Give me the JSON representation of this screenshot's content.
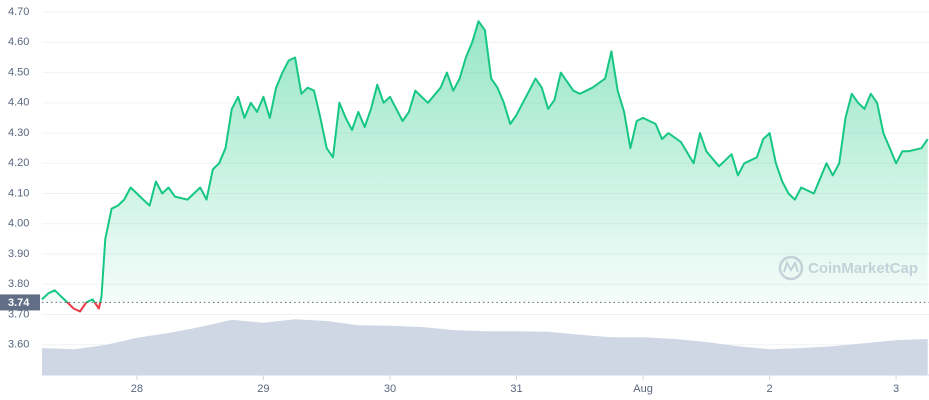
{
  "chart_data": {
    "type": "line",
    "x": [
      27.25,
      27.3,
      27.35,
      27.4,
      27.45,
      27.5,
      27.55,
      27.6,
      27.65,
      27.7,
      27.72,
      27.75,
      27.8,
      27.85,
      27.9,
      27.95,
      28,
      28.05,
      28.1,
      28.15,
      28.2,
      28.25,
      28.3,
      28.4,
      28.5,
      28.55,
      28.6,
      28.65,
      28.7,
      28.75,
      28.8,
      28.85,
      28.9,
      28.95,
      29,
      29.05,
      29.1,
      29.15,
      29.2,
      29.25,
      29.3,
      29.35,
      29.4,
      29.45,
      29.5,
      29.55,
      29.6,
      29.65,
      29.7,
      29.75,
      29.8,
      29.85,
      29.9,
      29.95,
      30,
      30.05,
      30.1,
      30.15,
      30.2,
      30.3,
      30.4,
      30.45,
      30.5,
      30.55,
      30.6,
      30.65,
      30.7,
      30.75,
      30.8,
      30.85,
      30.9,
      30.95,
      31,
      31.05,
      31.1,
      31.15,
      31.2,
      31.25,
      31.3,
      31.35,
      31.4,
      31.45,
      31.5,
      31.6,
      31.7,
      31.75,
      31.8,
      31.85,
      31.9,
      31.95,
      32,
      32.1,
      32.15,
      32.2,
      32.3,
      32.4,
      32.45,
      32.5,
      32.6,
      32.7,
      32.75,
      32.8,
      32.9,
      32.95,
      33,
      33.05,
      33.1,
      33.15,
      33.2,
      33.25,
      33.35,
      33.4,
      33.45,
      33.5,
      33.55,
      33.6,
      33.65,
      33.7,
      33.75,
      33.8,
      33.85,
      33.9,
      33.95,
      34,
      34.05,
      34.1,
      34.2,
      34.25
    ],
    "values": [
      3.75,
      3.77,
      3.78,
      3.76,
      3.74,
      3.72,
      3.71,
      3.74,
      3.75,
      3.72,
      3.76,
      3.95,
      4.05,
      4.06,
      4.08,
      4.12,
      4.1,
      4.08,
      4.06,
      4.14,
      4.1,
      4.12,
      4.09,
      4.08,
      4.12,
      4.08,
      4.18,
      4.2,
      4.25,
      4.38,
      4.42,
      4.35,
      4.4,
      4.37,
      4.42,
      4.35,
      4.45,
      4.5,
      4.54,
      4.55,
      4.43,
      4.45,
      4.44,
      4.35,
      4.25,
      4.22,
      4.4,
      4.35,
      4.31,
      4.37,
      4.32,
      4.38,
      4.46,
      4.4,
      4.42,
      4.38,
      4.34,
      4.37,
      4.44,
      4.4,
      4.45,
      4.5,
      4.44,
      4.48,
      4.55,
      4.6,
      4.67,
      4.64,
      4.48,
      4.45,
      4.4,
      4.33,
      4.36,
      4.4,
      4.44,
      4.48,
      4.45,
      4.38,
      4.41,
      4.5,
      4.47,
      4.44,
      4.43,
      4.45,
      4.48,
      4.57,
      4.44,
      4.37,
      4.25,
      4.34,
      4.35,
      4.33,
      4.28,
      4.3,
      4.27,
      4.2,
      4.3,
      4.24,
      4.19,
      4.23,
      4.16,
      4.2,
      4.22,
      4.28,
      4.3,
      4.2,
      4.14,
      4.1,
      4.08,
      4.12,
      4.1,
      4.15,
      4.2,
      4.16,
      4.2,
      4.35,
      4.43,
      4.4,
      4.38,
      4.43,
      4.4,
      4.3,
      4.25,
      4.2,
      4.24,
      4.24,
      4.25,
      4.28
    ],
    "color": "#16c784",
    "below_color": "#ea3943",
    "reference_line": 3.74,
    "xlim": [
      27.25,
      34.26
    ],
    "ylim": [
      3.5,
      4.74
    ],
    "xticks": [
      28,
      29,
      30,
      31,
      {
        "value": 32,
        "label": "Aug"
      },
      {
        "value": 33,
        "label": "2"
      },
      {
        "value": 34,
        "label": "3"
      }
    ],
    "yticks": [
      {
        "value": 3.6,
        "label": "3.60"
      },
      {
        "value": 3.7,
        "label": "3.70"
      },
      {
        "value": 3.8,
        "label": "3.80"
      },
      {
        "value": 3.9,
        "label": "3.90"
      },
      {
        "value": 4.0,
        "label": "4.00"
      },
      {
        "value": 4.1,
        "label": "4.10"
      },
      {
        "value": 4.2,
        "label": "4.20"
      },
      {
        "value": 4.3,
        "label": "4.30"
      },
      {
        "value": 4.4,
        "label": "4.40"
      },
      {
        "value": 4.5,
        "label": "4.50"
      },
      {
        "value": 4.6,
        "label": "4.60"
      },
      {
        "value": 4.7,
        "label": "4.70"
      }
    ],
    "grid": true,
    "volume": {
      "x": [
        27.25,
        27.5,
        27.75,
        28,
        28.25,
        28.5,
        28.75,
        29,
        29.25,
        29.5,
        29.75,
        30,
        30.25,
        30.5,
        30.75,
        31,
        31.25,
        31.5,
        31.75,
        32,
        32.25,
        32.5,
        32.75,
        33,
        33.25,
        33.5,
        33.75,
        34,
        34.25
      ],
      "values": [
        45,
        43,
        50,
        62,
        70,
        80,
        92,
        87,
        93,
        90,
        83,
        82,
        80,
        75,
        73,
        73,
        72,
        67,
        63,
        63,
        60,
        55,
        48,
        43,
        45,
        48,
        53,
        58,
        60
      ],
      "lim": [
        0,
        100
      ],
      "color": "#cfd6e4"
    },
    "watermark": "CoinMarketCap"
  }
}
